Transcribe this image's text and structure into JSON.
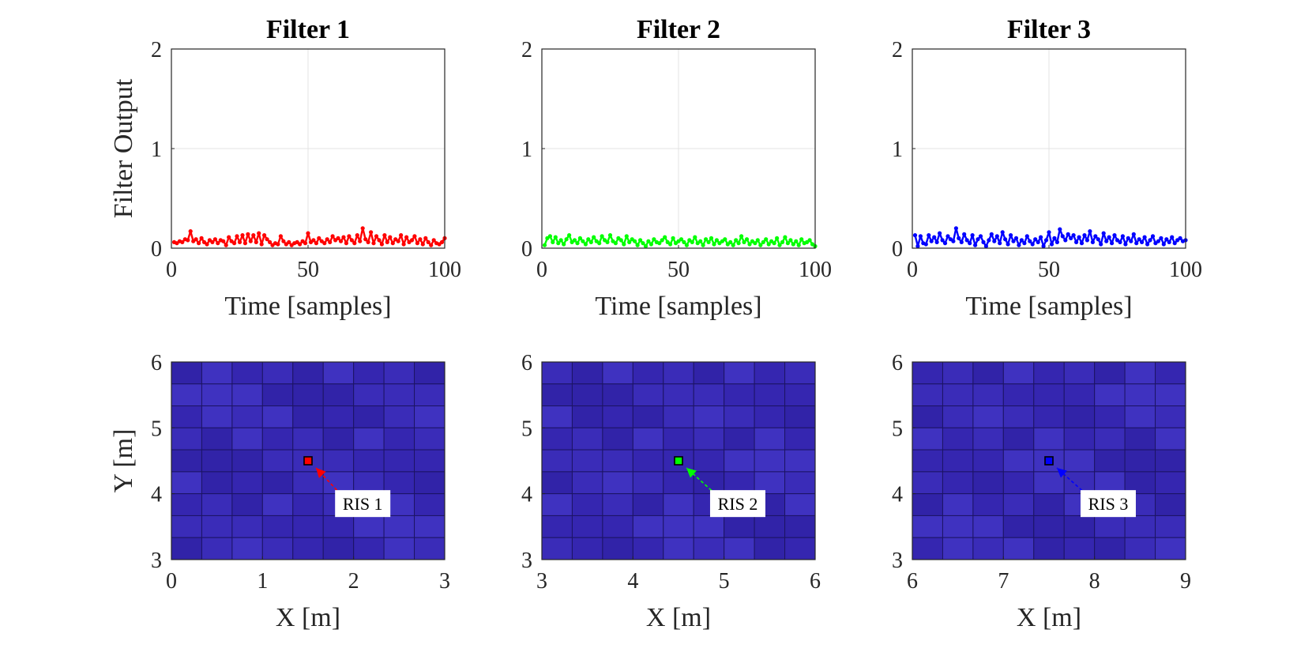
{
  "figure": {
    "background": "#ffffff",
    "filter_colors": [
      "#ff0000",
      "#00ff00",
      "#0000ff"
    ]
  },
  "chart_data": [
    {
      "type": "line",
      "panel": "top-1",
      "title": "Filter 1",
      "xlabel": "Time [samples]",
      "ylabel": "Filter Output",
      "xlim": [
        0,
        100
      ],
      "ylim": [
        0,
        2
      ],
      "xticks": [
        0,
        50,
        100
      ],
      "yticks": [
        0,
        1,
        2
      ],
      "grid": true,
      "marker": "dot",
      "color": "#ff0000",
      "series": [
        {
          "x": [
            1,
            2,
            3,
            4,
            5,
            6,
            7,
            8,
            9,
            10,
            11,
            12,
            13,
            14,
            15,
            16,
            17,
            18,
            19,
            20,
            21,
            22,
            23,
            24,
            25,
            26,
            27,
            28,
            29,
            30,
            31,
            32,
            33,
            34,
            35,
            36,
            37,
            38,
            39,
            40,
            41,
            42,
            43,
            44,
            45,
            46,
            47,
            48,
            49,
            50,
            51,
            52,
            53,
            54,
            55,
            56,
            57,
            58,
            59,
            60,
            61,
            62,
            63,
            64,
            65,
            66,
            67,
            68,
            69,
            70,
            71,
            72,
            73,
            74,
            75,
            76,
            77,
            78,
            79,
            80,
            81,
            82,
            83,
            84,
            85,
            86,
            87,
            88,
            89,
            90,
            91,
            92,
            93,
            94,
            95,
            96,
            97,
            98,
            99,
            100
          ],
          "y": [
            0.06,
            0.05,
            0.07,
            0.06,
            0.09,
            0.08,
            0.17,
            0.07,
            0.09,
            0.05,
            0.1,
            0.06,
            0.04,
            0.08,
            0.06,
            0.09,
            0.05,
            0.08,
            0.07,
            0.03,
            0.11,
            0.07,
            0.05,
            0.12,
            0.06,
            0.13,
            0.05,
            0.14,
            0.07,
            0.13,
            0.06,
            0.15,
            0.04,
            0.13,
            0.09,
            0.06,
            0.03,
            0.05,
            0.04,
            0.12,
            0.07,
            0.04,
            0.06,
            0.03,
            0.05,
            0.06,
            0.04,
            0.07,
            0.05,
            0.15,
            0.06,
            0.08,
            0.05,
            0.1,
            0.07,
            0.05,
            0.09,
            0.06,
            0.12,
            0.08,
            0.1,
            0.07,
            0.11,
            0.05,
            0.12,
            0.08,
            0.05,
            0.13,
            0.07,
            0.2,
            0.09,
            0.06,
            0.16,
            0.05,
            0.12,
            0.08,
            0.04,
            0.13,
            0.06,
            0.11,
            0.05,
            0.09,
            0.07,
            0.13,
            0.04,
            0.11,
            0.06,
            0.08,
            0.12,
            0.05,
            0.09,
            0.04,
            0.1,
            0.06,
            0.03,
            0.08,
            0.05,
            0.04,
            0.06,
            0.1
          ]
        }
      ]
    },
    {
      "type": "line",
      "panel": "top-2",
      "title": "Filter 2",
      "xlabel": "Time [samples]",
      "xlim": [
        0,
        100
      ],
      "ylim": [
        0,
        2
      ],
      "xticks": [
        0,
        50,
        100
      ],
      "yticks": [
        0,
        1,
        2
      ],
      "grid": true,
      "marker": "dot",
      "color": "#00ff00",
      "series": [
        {
          "x": [
            1,
            2,
            3,
            4,
            5,
            6,
            7,
            8,
            9,
            10,
            11,
            12,
            13,
            14,
            15,
            16,
            17,
            18,
            19,
            20,
            21,
            22,
            23,
            24,
            25,
            26,
            27,
            28,
            29,
            30,
            31,
            32,
            33,
            34,
            35,
            36,
            37,
            38,
            39,
            40,
            41,
            42,
            43,
            44,
            45,
            46,
            47,
            48,
            49,
            50,
            51,
            52,
            53,
            54,
            55,
            56,
            57,
            58,
            59,
            60,
            61,
            62,
            63,
            64,
            65,
            66,
            67,
            68,
            69,
            70,
            71,
            72,
            73,
            74,
            75,
            76,
            77,
            78,
            79,
            80,
            81,
            82,
            83,
            84,
            85,
            86,
            87,
            88,
            89,
            90,
            91,
            92,
            93,
            94,
            95,
            96,
            97,
            98,
            99,
            100
          ],
          "y": [
            0.03,
            0.1,
            0.12,
            0.06,
            0.11,
            0.05,
            0.08,
            0.04,
            0.09,
            0.13,
            0.06,
            0.08,
            0.05,
            0.1,
            0.07,
            0.04,
            0.09,
            0.06,
            0.11,
            0.07,
            0.05,
            0.12,
            0.08,
            0.06,
            0.13,
            0.07,
            0.05,
            0.1,
            0.08,
            0.04,
            0.12,
            0.06,
            0.09,
            0.07,
            0.03,
            0.08,
            0.05,
            0.02,
            0.07,
            0.04,
            0.09,
            0.06,
            0.05,
            0.08,
            0.11,
            0.06,
            0.04,
            0.1,
            0.05,
            0.07,
            0.09,
            0.06,
            0.03,
            0.08,
            0.06,
            0.11,
            0.05,
            0.07,
            0.03,
            0.09,
            0.06,
            0.1,
            0.04,
            0.08,
            0.05,
            0.07,
            0.09,
            0.04,
            0.06,
            0.03,
            0.08,
            0.05,
            0.12,
            0.06,
            0.09,
            0.04,
            0.07,
            0.05,
            0.08,
            0.03,
            0.06,
            0.09,
            0.04,
            0.07,
            0.05,
            0.1,
            0.03,
            0.06,
            0.11,
            0.05,
            0.08,
            0.04,
            0.07,
            0.03,
            0.09,
            0.05,
            0.06,
            0.08,
            0.04,
            0.02
          ]
        }
      ]
    },
    {
      "type": "line",
      "panel": "top-3",
      "title": "Filter 3",
      "xlabel": "Time [samples]",
      "xlim": [
        0,
        100
      ],
      "ylim": [
        0,
        2
      ],
      "xticks": [
        0,
        50,
        100
      ],
      "yticks": [
        0,
        1,
        2
      ],
      "grid": true,
      "marker": "dot",
      "color": "#0000ff",
      "series": [
        {
          "x": [
            1,
            2,
            3,
            4,
            5,
            6,
            7,
            8,
            9,
            10,
            11,
            12,
            13,
            14,
            15,
            16,
            17,
            18,
            19,
            20,
            21,
            22,
            23,
            24,
            25,
            26,
            27,
            28,
            29,
            30,
            31,
            32,
            33,
            34,
            35,
            36,
            37,
            38,
            39,
            40,
            41,
            42,
            43,
            44,
            45,
            46,
            47,
            48,
            49,
            50,
            51,
            52,
            53,
            54,
            55,
            56,
            57,
            58,
            59,
            60,
            61,
            62,
            63,
            64,
            65,
            66,
            67,
            68,
            69,
            70,
            71,
            72,
            73,
            74,
            75,
            76,
            77,
            78,
            79,
            80,
            81,
            82,
            83,
            84,
            85,
            86,
            87,
            88,
            89,
            90,
            91,
            92,
            93,
            94,
            95,
            96,
            97,
            98,
            99,
            100
          ],
          "y": [
            0.13,
            0.02,
            0.12,
            0.05,
            0.04,
            0.13,
            0.07,
            0.11,
            0.06,
            0.15,
            0.08,
            0.05,
            0.12,
            0.09,
            0.07,
            0.2,
            0.1,
            0.06,
            0.14,
            0.08,
            0.05,
            0.13,
            0.03,
            0.09,
            0.12,
            0.06,
            0.02,
            0.08,
            0.14,
            0.07,
            0.12,
            0.05,
            0.16,
            0.09,
            0.04,
            0.13,
            0.07,
            0.1,
            0.03,
            0.08,
            0.05,
            0.12,
            0.07,
            0.04,
            0.09,
            0.06,
            0.11,
            0.02,
            0.08,
            0.16,
            0.04,
            0.1,
            0.06,
            0.19,
            0.12,
            0.08,
            0.14,
            0.1,
            0.13,
            0.06,
            0.11,
            0.05,
            0.13,
            0.08,
            0.17,
            0.06,
            0.12,
            0.09,
            0.04,
            0.15,
            0.07,
            0.11,
            0.05,
            0.13,
            0.08,
            0.06,
            0.12,
            0.04,
            0.1,
            0.07,
            0.14,
            0.05,
            0.09,
            0.06,
            0.11,
            0.04,
            0.08,
            0.12,
            0.05,
            0.07,
            0.1,
            0.04,
            0.09,
            0.06,
            0.11,
            0.05,
            0.08,
            0.1,
            0.07,
            0.08
          ]
        }
      ]
    },
    {
      "type": "heatmap",
      "panel": "bottom-1",
      "xlabel": "X [m]",
      "ylabel": "Y [m]",
      "xlim": [
        0,
        3
      ],
      "ylim": [
        3,
        6
      ],
      "xticks": [
        0,
        1,
        2,
        3
      ],
      "yticks": [
        3,
        4,
        5,
        6
      ],
      "cols": 9,
      "rows": 9,
      "cell_colors": [
        "#3a2cb8",
        "#3526b0",
        "#3f32c0",
        "#3123a8"
      ],
      "marker": {
        "x": 1.5,
        "y": 4.5,
        "color": "#ff0000"
      },
      "annotation": {
        "text": "RIS 1",
        "x": 2.1,
        "y": 3.85,
        "arrow_color": "#ff0000"
      }
    },
    {
      "type": "heatmap",
      "panel": "bottom-2",
      "xlabel": "X [m]",
      "xlim": [
        3,
        6
      ],
      "ylim": [
        3,
        6
      ],
      "xticks": [
        3,
        4,
        5,
        6
      ],
      "yticks": [
        3,
        4,
        5,
        6
      ],
      "cols": 9,
      "rows": 9,
      "cell_colors": [
        "#3a2cb8",
        "#3526b0",
        "#3f32c0",
        "#3123a8"
      ],
      "marker": {
        "x": 4.5,
        "y": 4.5,
        "color": "#00ff00"
      },
      "annotation": {
        "text": "RIS 2",
        "x": 5.15,
        "y": 3.85,
        "arrow_color": "#00ff00"
      }
    },
    {
      "type": "heatmap",
      "panel": "bottom-3",
      "xlabel": "X [m]",
      "xlim": [
        6,
        9
      ],
      "ylim": [
        3,
        6
      ],
      "xticks": [
        6,
        7,
        8,
        9
      ],
      "yticks": [
        3,
        4,
        5,
        6
      ],
      "cols": 9,
      "rows": 9,
      "cell_colors": [
        "#3a2cb8",
        "#3526b0",
        "#3f32c0",
        "#3123a8"
      ],
      "marker": {
        "x": 7.5,
        "y": 4.5,
        "color": "#0000ff"
      },
      "annotation": {
        "text": "RIS 3",
        "x": 8.15,
        "y": 3.85,
        "arrow_color": "#0000ff"
      }
    }
  ]
}
